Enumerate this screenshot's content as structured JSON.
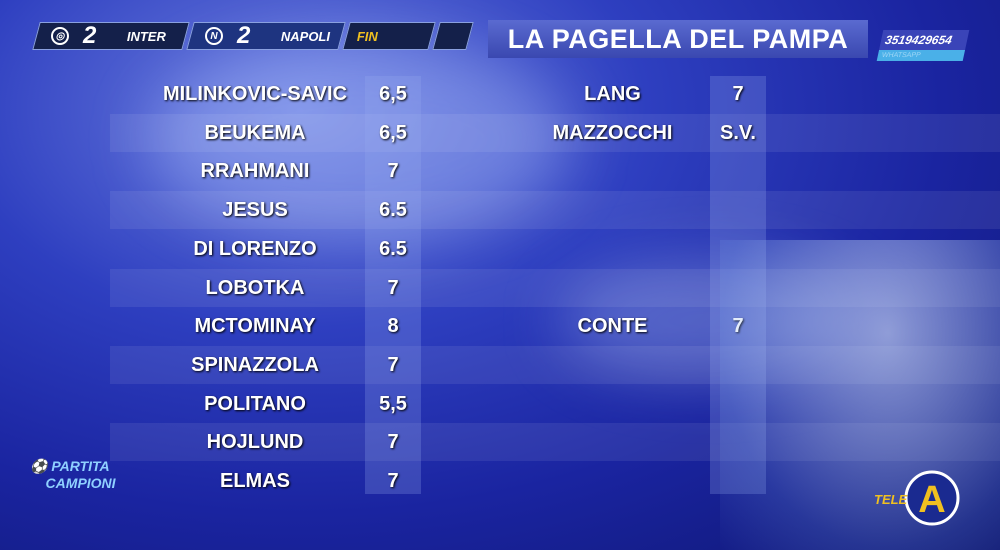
{
  "scoreboard": {
    "home": {
      "team": "INTER",
      "score": "2"
    },
    "away": {
      "team": "NAPOLI",
      "score": "2"
    },
    "status": "FIN"
  },
  "title": "LA PAGELLA DEL PAMPA",
  "contact": {
    "number": "3519429654",
    "label": "WHATSAPP"
  },
  "left_grades": [
    {
      "name": "MILINKOVIC-SAVIC",
      "grade": "6,5"
    },
    {
      "name": "BEUKEMA",
      "grade": "6,5"
    },
    {
      "name": "RRAHMANI",
      "grade": "7"
    },
    {
      "name": "JESUS",
      "grade": "6.5"
    },
    {
      "name": "DI LORENZO",
      "grade": "6.5"
    },
    {
      "name": "LOBOTKA",
      "grade": "7"
    },
    {
      "name": "MCTOMINAY",
      "grade": "8"
    },
    {
      "name": "SPINAZZOLA",
      "grade": "7"
    },
    {
      "name": "POLITANO",
      "grade": "5,5"
    },
    {
      "name": "HOJLUND",
      "grade": "7"
    },
    {
      "name": "ELMAS",
      "grade": "7"
    }
  ],
  "right_grades": [
    {
      "name": "LANG",
      "grade": "7",
      "row": 0
    },
    {
      "name": "MAZZOCCHI",
      "grade": "S.V.",
      "row": 1
    },
    {
      "name": "CONTE",
      "grade": "7",
      "row": 6
    }
  ],
  "logos": {
    "left": "LA PARTITA DEI CAMPIONI",
    "right": "TELE A"
  },
  "colors": {
    "background": "#2e3fc0",
    "status": "#f0c020"
  }
}
